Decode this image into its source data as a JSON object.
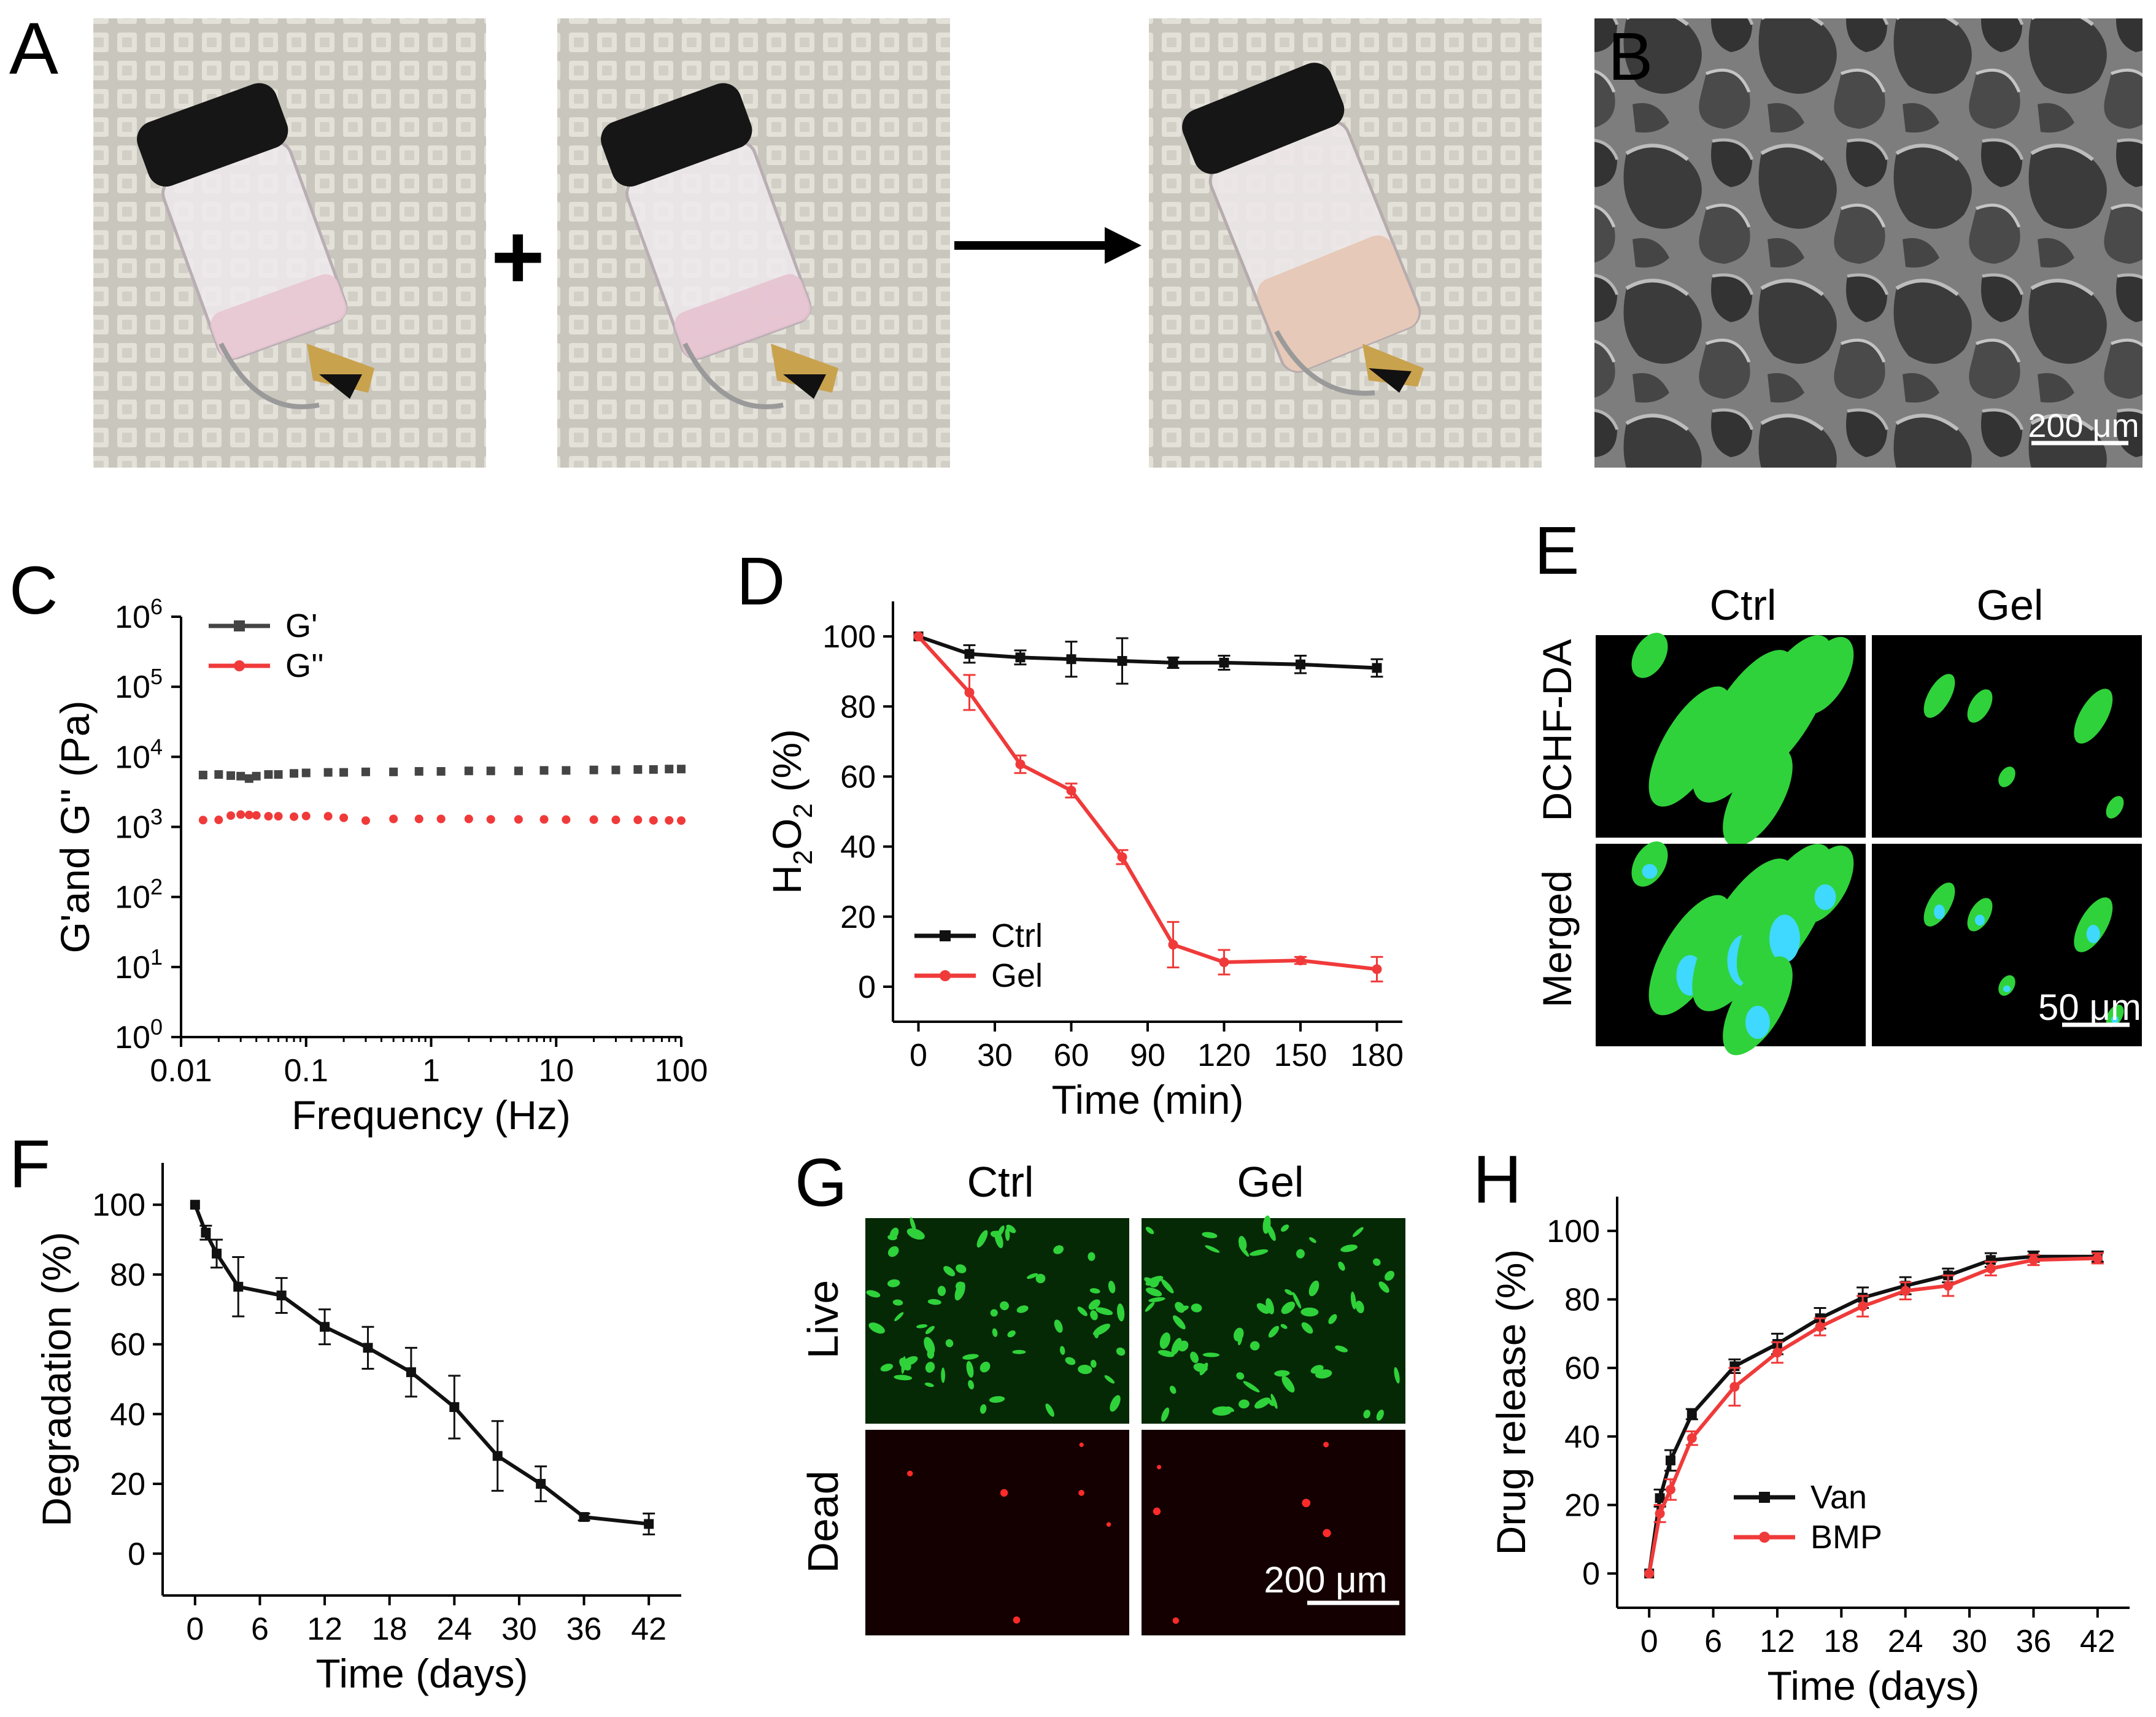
{
  "panels": {
    "A": {
      "letter": "A",
      "plus": "+"
    },
    "B": {
      "letter": "B",
      "scale_bar": "200 μm"
    },
    "E": {
      "letter": "E",
      "columns": [
        "Ctrl",
        "Gel"
      ],
      "rows": [
        "DCHF-DA",
        "Merged"
      ],
      "scale_bar": "50 μm"
    },
    "G": {
      "letter": "G",
      "columns": [
        "Ctrl",
        "Gel"
      ],
      "rows": [
        "Live",
        "Dead"
      ],
      "scale_bar": "200 μm"
    }
  },
  "colors": {
    "black_series": "#111111",
    "red_series": "#f03a3a",
    "gray_series": "#444444",
    "green_cells": "#2fd23a",
    "red_cells": "#ff2a2a",
    "blue_nuclei": "#3fd8ff"
  },
  "chart_data": [
    {
      "panel": "C",
      "letter": "C",
      "type": "scatter",
      "yscale": "log",
      "xscale": "log",
      "xlabel": "Frequency (Hz)",
      "ylabel": "G'and G'' (Pa)",
      "xlim": [
        0.01,
        100
      ],
      "ylim": [
        1,
        1000000
      ],
      "xticks": [
        0.01,
        0.1,
        1,
        10,
        100
      ],
      "xtick_labels": [
        "0.01",
        "0.1",
        "1",
        "10",
        "100"
      ],
      "ytick_exponents": [
        0,
        1,
        2,
        3,
        4,
        5,
        6
      ],
      "legend_position": "top-left",
      "series": [
        {
          "name": "G'",
          "color": "#444444",
          "marker": "square",
          "x": [
            0.015,
            0.02,
            0.025,
            0.03,
            0.035,
            0.04,
            0.05,
            0.06,
            0.08,
            0.1,
            0.15,
            0.2,
            0.3,
            0.5,
            0.8,
            1.2,
            2,
            3,
            5,
            8,
            12,
            20,
            30,
            45,
            60,
            80,
            100
          ],
          "y": [
            5500,
            5600,
            5400,
            5300,
            4900,
            5300,
            5600,
            5600,
            5800,
            5900,
            6000,
            6000,
            6100,
            6100,
            6200,
            6200,
            6300,
            6300,
            6300,
            6400,
            6400,
            6500,
            6500,
            6600,
            6600,
            6700,
            6700
          ]
        },
        {
          "name": "G''",
          "color": "#f03a3a",
          "marker": "circle",
          "x": [
            0.015,
            0.02,
            0.025,
            0.03,
            0.035,
            0.04,
            0.05,
            0.06,
            0.08,
            0.1,
            0.15,
            0.2,
            0.3,
            0.5,
            0.8,
            1.2,
            2,
            3,
            5,
            8,
            12,
            20,
            30,
            45,
            60,
            80,
            100
          ],
          "y": [
            1250,
            1260,
            1450,
            1500,
            1480,
            1460,
            1420,
            1420,
            1400,
            1430,
            1420,
            1350,
            1230,
            1300,
            1300,
            1300,
            1300,
            1280,
            1280,
            1280,
            1270,
            1270,
            1260,
            1260,
            1240,
            1240,
            1230
          ]
        }
      ]
    },
    {
      "panel": "D",
      "letter": "D",
      "type": "line",
      "xlabel": "Time (min)",
      "ylabel_main": "H",
      "ylabel_sub": "2",
      "ylabel_mid": "O",
      "ylabel_sub2": "2",
      "ylabel_end": " (%)",
      "xlim": [
        -10,
        190
      ],
      "ylim": [
        -10,
        110
      ],
      "xticks": [
        0,
        30,
        60,
        90,
        120,
        150,
        180
      ],
      "yticks": [
        0,
        20,
        40,
        60,
        80,
        100
      ],
      "legend_position": "bottom-left",
      "series": [
        {
          "name": "Ctrl",
          "color": "#111111",
          "marker": "square",
          "x": [
            0,
            20,
            40,
            60,
            80,
            100,
            120,
            150,
            180
          ],
          "y": [
            100,
            95,
            94,
            93.5,
            93,
            92.5,
            92.5,
            92,
            91
          ],
          "err": [
            0,
            2.5,
            2,
            5,
            6.5,
            1.5,
            2,
            2.5,
            2.5
          ]
        },
        {
          "name": "Gel",
          "color": "#f03a3a",
          "marker": "circle",
          "x": [
            0,
            20,
            40,
            60,
            80,
            100,
            120,
            150,
            180
          ],
          "y": [
            100,
            84,
            63.5,
            56,
            37,
            12,
            7,
            7.5,
            5
          ],
          "err": [
            0,
            5,
            2.5,
            2,
            2,
            6.5,
            3.5,
            1,
            3.5
          ]
        }
      ]
    },
    {
      "panel": "F",
      "letter": "F",
      "type": "line",
      "xlabel": "Time (days)",
      "ylabel": "Degradation (%)",
      "xlim": [
        -3,
        45
      ],
      "ylim": [
        -12,
        112
      ],
      "xticks": [
        0,
        6,
        12,
        18,
        24,
        30,
        36,
        42
      ],
      "yticks": [
        0,
        20,
        40,
        60,
        80,
        100
      ],
      "series": [
        {
          "name": "",
          "color": "#111111",
          "marker": "square",
          "x": [
            0,
            1,
            2,
            4,
            8,
            12,
            16,
            20,
            24,
            28,
            32,
            36,
            42
          ],
          "y": [
            100,
            92,
            86,
            76.5,
            74,
            65,
            59,
            52,
            42,
            28,
            20,
            10.5,
            8.5
          ],
          "err": [
            0,
            2,
            4,
            8.5,
            5,
            5,
            6,
            7,
            9,
            10,
            5,
            1,
            3
          ]
        }
      ]
    },
    {
      "panel": "H",
      "letter": "H",
      "type": "line",
      "xlabel": "Time (days)",
      "ylabel": "Drug release (%)",
      "xlim": [
        -3,
        45
      ],
      "ylim": [
        -10,
        110
      ],
      "xticks": [
        0,
        6,
        12,
        18,
        24,
        30,
        36,
        42
      ],
      "yticks": [
        0,
        20,
        40,
        60,
        80,
        100
      ],
      "legend_position": "bottom-right",
      "series": [
        {
          "name": "Van",
          "color": "#111111",
          "marker": "square",
          "x": [
            0,
            1,
            2,
            4,
            8,
            12,
            16,
            20,
            24,
            28,
            32,
            36,
            42
          ],
          "y": [
            0,
            22,
            33,
            46.5,
            60.5,
            67,
            74.5,
            80.5,
            84,
            87,
            91.5,
            92.5,
            92.5
          ],
          "err": [
            0,
            2.5,
            3,
            1.5,
            2,
            3,
            3,
            3,
            2.5,
            2,
            2,
            1.5,
            1.5
          ]
        },
        {
          "name": "BMP",
          "color": "#f03a3a",
          "marker": "circle",
          "x": [
            0,
            1,
            2,
            4,
            8,
            12,
            16,
            20,
            24,
            28,
            32,
            36,
            42
          ],
          "y": [
            0,
            17.5,
            24.5,
            39.5,
            54.5,
            64.5,
            72,
            78,
            82.5,
            84,
            89,
            91.5,
            92
          ],
          "err": [
            0,
            2.5,
            3,
            2,
            5.5,
            3,
            2.5,
            3,
            2.5,
            3,
            2,
            1.5,
            1.5
          ]
        }
      ]
    }
  ]
}
